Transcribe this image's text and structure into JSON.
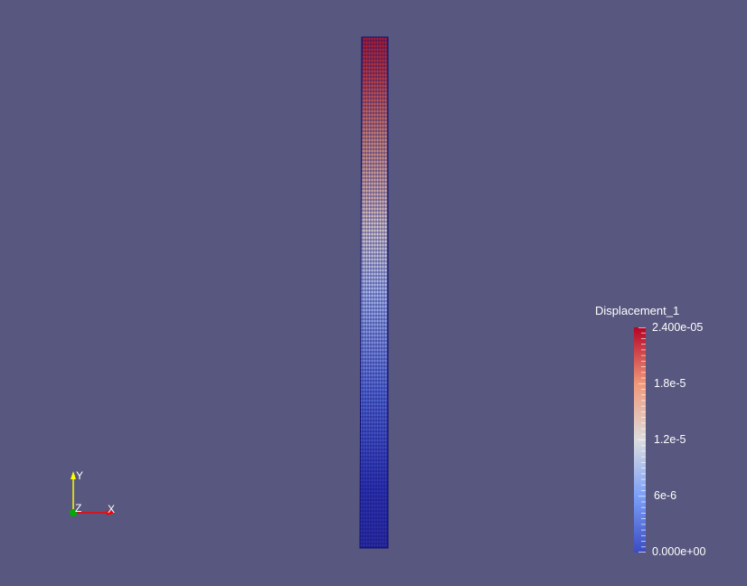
{
  "scalar_bar": {
    "title": "Displacement_1",
    "max_label": "2.400e-05",
    "min_label": "0.000e+00",
    "ticks": [
      {
        "label": "1.8e-5",
        "value": 1.8e-05
      },
      {
        "label": "1.2e-5",
        "value": 1.2e-05
      },
      {
        "label": "6e-6",
        "value": 6e-06
      }
    ],
    "range": [
      0,
      2.4e-05
    ],
    "colormap": [
      "#3b4cc0",
      "#dddddd",
      "#b40426"
    ]
  },
  "orientation_axes": {
    "x_label": "X",
    "y_label": "Y",
    "z_label": "Z",
    "x_color": "#ff0000",
    "y_color": "#ffff00",
    "z_color": "#00aa00"
  },
  "colors": {
    "background": "#57577f",
    "mesh_edge": "#101070"
  }
}
